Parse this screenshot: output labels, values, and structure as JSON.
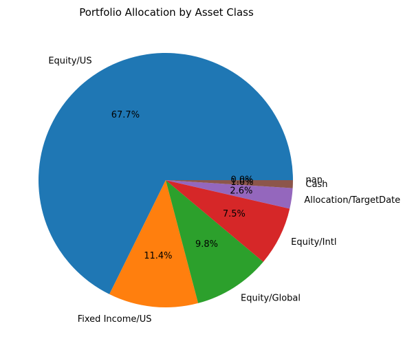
{
  "chart_data": {
    "type": "pie",
    "title": "Portfolio Allocation by Asset Class",
    "slices": [
      {
        "label": "Equity/US",
        "percent": 67.7,
        "pct_label": "67.7%",
        "color": "#1f77b4"
      },
      {
        "label": "Fixed Income/US",
        "percent": 11.4,
        "pct_label": "11.4%",
        "color": "#ff7f0e"
      },
      {
        "label": "Equity/Global",
        "percent": 9.8,
        "pct_label": "9.8%",
        "color": "#2ca02c"
      },
      {
        "label": "Equity/Intl",
        "percent": 7.5,
        "pct_label": "7.5%",
        "color": "#d62728"
      },
      {
        "label": "Allocation/TargetDate",
        "percent": 2.6,
        "pct_label": "2.6%",
        "color": "#9467bd"
      },
      {
        "label": "Cash",
        "percent": 1.0,
        "pct_label": "1.0%",
        "color": "#8c564b"
      },
      {
        "label": "nan",
        "percent": 0.0,
        "pct_label": "0.0%",
        "color": "#e377c2"
      }
    ],
    "start_angle": 0,
    "direction": "counterclockwise"
  }
}
